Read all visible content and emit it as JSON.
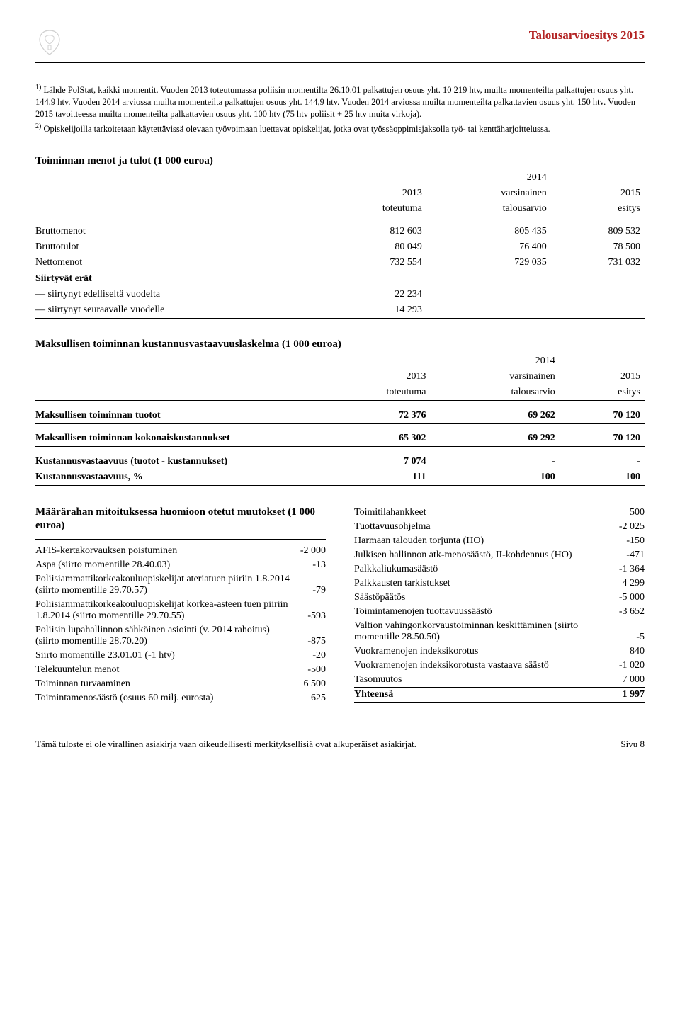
{
  "header": {
    "title": "Talousarvioesitys 2015",
    "title_color": "#b22222"
  },
  "footnotes": {
    "f1": "Lähde PolStat, kaikki momentit. Vuoden 2013 toteutumassa poliisin momentilta 26.10.01 palkattujen osuus yht. 10 219 htv, muilta momenteilta palkattujen osuus yht. 144,9 htv. Vuoden 2014 arviossa muilta momenteilta palkattujen osuus yht. 144,9 htv. Vuoden 2014 arviossa muilta momenteilta palkattavien osuus yht. 150 htv. Vuoden 2015 tavoitteessa muilta momenteilta palkattavien osuus yht. 100 htv (75 htv poliisit + 25 htv muita virkoja).",
    "f2": "Opiskelijoilla tarkoitetaan käytettävissä olevaan työvoimaan luettavat opiskelijat, jotka ovat työssäoppimisjaksolla työ- tai kenttäharjoittelussa."
  },
  "table1": {
    "title": "Toiminnan menot ja tulot (1 000 euroa)",
    "col1a": "2013",
    "col1b": "toteutuma",
    "col2a": "2014",
    "col2b": "varsinainen",
    "col2c": "talousarvio",
    "col3a": "2015",
    "col3b": "esitys",
    "r1": {
      "label": "Bruttomenot",
      "v1": "812 603",
      "v2": "805 435",
      "v3": "809 532"
    },
    "r2": {
      "label": "Bruttotulot",
      "v1": "80 049",
      "v2": "76 400",
      "v3": "78 500"
    },
    "r3": {
      "label": "Nettomenot",
      "v1": "732 554",
      "v2": "729 035",
      "v3": "731 032"
    },
    "siirtyvat_title": "Siirtyvät erät",
    "r4": {
      "label": "— siirtynyt edelliseltä vuodelta",
      "v1": "22 234"
    },
    "r5": {
      "label": "— siirtynyt seuraavalle vuodelle",
      "v1": "14 293"
    }
  },
  "table2": {
    "title": "Maksullisen toiminnan kustannusvastaavuuslaskelma (1 000 euroa)",
    "col1a": "2013",
    "col1b": "toteutuma",
    "col2a": "2014",
    "col2b": "varsinainen",
    "col2c": "talousarvio",
    "col3a": "2015",
    "col3b": "esitys",
    "r1": {
      "label": "Maksullisen toiminnan tuotot",
      "v1": "72 376",
      "v2": "69 262",
      "v3": "70 120"
    },
    "r2": {
      "label": "Maksullisen toiminnan kokonaiskustannukset",
      "v1": "65 302",
      "v2": "69 292",
      "v3": "70 120"
    },
    "r3": {
      "label": "Kustannusvastaavuus (tuotot - kustannukset)",
      "v1": "7 074",
      "v2": "-",
      "v3": "-"
    },
    "r4": {
      "label": "Kustannusvastaavuus, %",
      "v1": "111",
      "v2": "100",
      "v3": "100"
    }
  },
  "changes": {
    "title": "Määrärahan mitoituksessa huomioon otetut muutokset (1 000 euroa)",
    "left": [
      {
        "label": "AFIS-kertakorvauksen poistuminen",
        "value": "-2 000"
      },
      {
        "label": "Aspa (siirto momentille 28.40.03)",
        "value": "-13"
      },
      {
        "label": "Poliisiammattikorkeakouluopiskelijat ateriatuen piiriin 1.8.2014 (siirto momentille 29.70.57)",
        "value": "-79"
      },
      {
        "label": "Poliisiammattikorkeakouluopiskelijat korkea-asteen tuen piiriin 1.8.2014 (siirto momentille 29.70.55)",
        "value": "-593"
      },
      {
        "label": "Poliisin lupahallinnon sähköinen asiointi (v. 2014 rahoitus) (siirto momentille 28.70.20)",
        "value": "-875"
      },
      {
        "label": "Siirto momentille 23.01.01 (-1 htv)",
        "value": "-20"
      },
      {
        "label": "Telekuuntelun menot",
        "value": "-500"
      },
      {
        "label": "Toiminnan turvaaminen",
        "value": "6 500"
      },
      {
        "label": "Toimintamenosäästö (osuus 60 milj. eurosta)",
        "value": "625"
      }
    ],
    "right": [
      {
        "label": "Toimitilahankkeet",
        "value": "500"
      },
      {
        "label": "Tuottavuusohjelma",
        "value": "-2 025"
      },
      {
        "label": "Harmaan talouden torjunta (HO)",
        "value": "-150"
      },
      {
        "label": "Julkisen hallinnon atk-menosäästö, II-kohdennus (HO)",
        "value": "-471"
      },
      {
        "label": "Palkkaliukumasäästö",
        "value": "-1 364"
      },
      {
        "label": "Palkkausten tarkistukset",
        "value": "4 299"
      },
      {
        "label": "Säästöpäätös",
        "value": "-5 000"
      },
      {
        "label": "Toimintamenojen tuottavuussäästö",
        "value": "-3 652"
      },
      {
        "label": "Valtion vahingonkorvaustoiminnan keskittäminen (siirto momentille 28.50.50)",
        "value": "-5"
      },
      {
        "label": "Vuokramenojen indeksikorotus",
        "value": "840"
      },
      {
        "label": "Vuokramenojen indeksikorotusta vastaava säästö",
        "value": "-1 020"
      },
      {
        "label": "Tasomuutos",
        "value": "7 000"
      }
    ],
    "total": {
      "label": "Yhteensä",
      "value": "1 997"
    }
  },
  "footer": {
    "left": "Tämä tuloste ei ole virallinen asiakirja vaan oikeudellisesti merkityksellisiä ovat alkuperäiset asiakirjat.",
    "right": "Sivu 8"
  }
}
